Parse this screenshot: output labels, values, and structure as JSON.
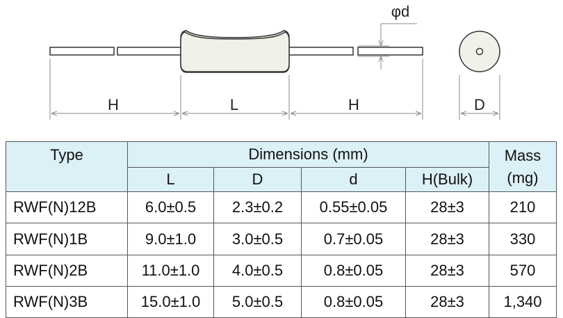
{
  "diagram": {
    "phi_label": "φd",
    "h_left": "H",
    "l_label": "L",
    "h_right": "H",
    "d_label": "D"
  },
  "table": {
    "header": {
      "type": "Type",
      "dimensions": "Dimensions (mm)",
      "mass": "Mass",
      "mass_unit": "(mg)",
      "sub": [
        "L",
        "D",
        "d",
        "H(Bulk)"
      ]
    },
    "rows": [
      [
        "RWF(N)12B",
        "6.0±0.5",
        "2.3±0.2",
        "0.55±0.05",
        "28±3",
        "210"
      ],
      [
        "RWF(N)1B",
        "9.0±1.0",
        "3.0±0.5",
        "0.7±0.05",
        "28±3",
        "330"
      ],
      [
        "RWF(N)2B",
        "11.0±1.0",
        "4.0±0.5",
        "0.8±0.05",
        "28±3",
        "570"
      ],
      [
        "RWF(N)3B",
        "15.0±1.0",
        "5.0±0.5",
        "0.8±0.05",
        "28±3",
        "1,340"
      ]
    ]
  }
}
